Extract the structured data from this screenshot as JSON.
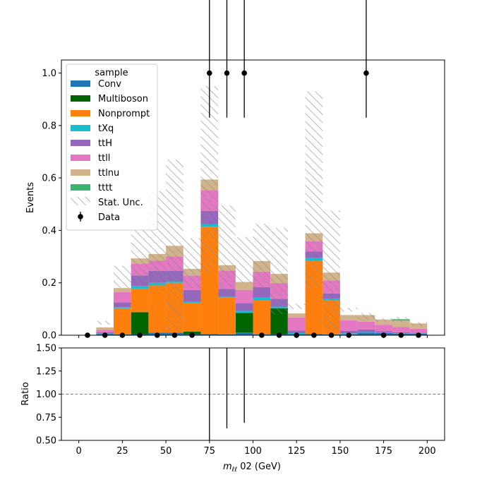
{
  "chart_data": {
    "type": "bar",
    "stacked": true,
    "bin_edges": [
      0,
      10,
      20,
      30,
      40,
      50,
      60,
      70,
      80,
      90,
      100,
      110,
      120,
      130,
      140,
      150,
      160,
      170,
      180,
      190,
      200
    ],
    "series": [
      {
        "name": "Conv",
        "color": "#1f77b4",
        "values": [
          0.0,
          0.004,
          0.003,
          0.003,
          0.01,
          0.01,
          0.004,
          0.004,
          0.003,
          0.01,
          0.003,
          0.003,
          0.004,
          0.004,
          0.003,
          0.003,
          0.01,
          0.008,
          0.006,
          0.006
        ]
      },
      {
        "name": "Multiboson",
        "color": "#006400",
        "values": [
          0.0,
          0.0,
          0.0,
          0.085,
          0.0,
          0.0,
          0.01,
          0.0,
          0.0,
          0.075,
          0.0,
          0.1,
          0.0,
          0.0,
          0.0,
          0.0,
          0.0,
          0.0,
          0.0,
          0.0
        ]
      },
      {
        "name": "Nonprompt",
        "color": "#ff7f0e",
        "values": [
          0.0,
          0.0,
          0.1,
          0.09,
          0.18,
          0.19,
          0.11,
          0.41,
          0.14,
          0.0,
          0.13,
          0.0,
          0.0,
          0.28,
          0.13,
          0.0,
          0.0,
          0.0,
          0.0,
          0.0
        ]
      },
      {
        "name": "tXq",
        "color": "#17becf",
        "values": [
          0.0,
          0.003,
          0.004,
          0.01,
          0.01,
          0.006,
          0.004,
          0.01,
          0.004,
          0.008,
          0.01,
          0.006,
          0.004,
          0.01,
          0.006,
          0.004,
          0.002,
          0.002,
          0.001,
          0.001
        ]
      },
      {
        "name": "ttH",
        "color": "#9467bd",
        "values": [
          0.0,
          0.004,
          0.018,
          0.04,
          0.045,
          0.04,
          0.045,
          0.05,
          0.03,
          0.03,
          0.04,
          0.03,
          0.01,
          0.025,
          0.02,
          0.01,
          0.01,
          0.005,
          0.004,
          0.003
        ]
      },
      {
        "name": "ttll",
        "color": "#e377c2",
        "values": [
          0.0,
          0.009,
          0.04,
          0.045,
          0.04,
          0.055,
          0.055,
          0.08,
          0.07,
          0.05,
          0.06,
          0.06,
          0.05,
          0.04,
          0.05,
          0.04,
          0.03,
          0.025,
          0.02,
          0.015
        ]
      },
      {
        "name": "ttlnu",
        "color": "#d2b48c",
        "values": [
          0.0,
          0.01,
          0.015,
          0.02,
          0.025,
          0.04,
          0.025,
          0.04,
          0.02,
          0.03,
          0.04,
          0.035,
          0.015,
          0.03,
          0.03,
          0.02,
          0.025,
          0.02,
          0.025,
          0.02
        ]
      },
      {
        "name": "tttt",
        "color": "#3cb371",
        "values": [
          0.0,
          0.0,
          0.0,
          0.0,
          0.0,
          0.0,
          0.0,
          0.0,
          0.0,
          0.0,
          0.0,
          0.0,
          0.0,
          0.0,
          0.0,
          0.0,
          0.0,
          0.0,
          0.005,
          0.0
        ]
      }
    ],
    "stat_unc": {
      "name": "Stat. Unc.",
      "low": [
        0,
        0.04,
        0.18,
        0.18,
        0.18,
        0.02,
        0.18,
        0.24,
        0.16,
        0.2,
        0.17,
        0.08,
        0.1,
        0.18,
        0.02,
        0.09,
        0.06,
        0.05,
        0.05,
        0.035
      ],
      "high": [
        0,
        0.055,
        0.265,
        0.4,
        0.55,
        0.67,
        0.37,
        0.95,
        0.495,
        0.375,
        0.425,
        0.41,
        0.12,
        0.93,
        0.475,
        0.105,
        0.085,
        0.065,
        0.07,
        0.05
      ]
    },
    "data_points": {
      "name": "Data",
      "x": [
        5,
        15,
        25,
        35,
        45,
        55,
        65,
        75,
        85,
        95,
        105,
        115,
        125,
        135,
        145,
        155,
        165,
        175,
        185,
        195
      ],
      "y": [
        0,
        0,
        0,
        0,
        0,
        0,
        0,
        1,
        1,
        1,
        0,
        0,
        0,
        0,
        0,
        0,
        1,
        0,
        0,
        0
      ],
      "err_low": [
        0,
        0,
        0,
        0,
        0,
        0,
        0,
        0.83,
        0.83,
        0.83,
        0,
        0,
        0,
        0,
        0,
        0,
        0.83,
        0,
        0,
        0
      ],
      "err_high": [
        0,
        0,
        0,
        0,
        0,
        0,
        0,
        1.3,
        1.3,
        1.3,
        0,
        0,
        0,
        0,
        0,
        0,
        1.3,
        0,
        0,
        0
      ]
    },
    "ratio": {
      "ylabel": "Ratio",
      "ylim": [
        0.5,
        1.5
      ],
      "yticks": [
        "0.50",
        "0.75",
        "1.00",
        "1.25",
        "1.50"
      ],
      "reference": 1.0,
      "err_x": [
        75,
        85,
        95
      ],
      "err_low": [
        0.1,
        0.63,
        0.69
      ],
      "err_high": [
        1.6,
        1.6,
        1.6
      ]
    },
    "legend": {
      "title": "sample",
      "placement": "top-left"
    },
    "xlabel_math": "m",
    "xlabel_sub": "ℓℓ",
    "xlabel_rest": " 02 (GeV)",
    "ylabel": "Events",
    "xlim": [
      -10,
      210
    ],
    "ylim": [
      0,
      1.05
    ],
    "xticks": [
      "0",
      "25",
      "50",
      "75",
      "100",
      "125",
      "150",
      "175",
      "200"
    ],
    "yticks": [
      "0.0",
      "0.2",
      "0.4",
      "0.6",
      "0.8",
      "1.0"
    ]
  }
}
